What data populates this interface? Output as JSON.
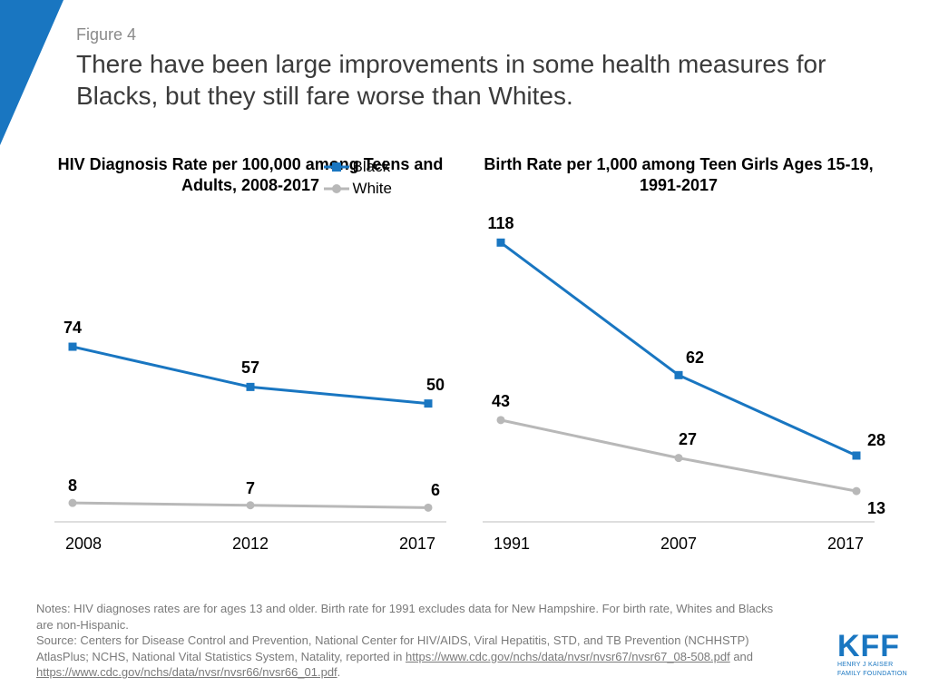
{
  "header": {
    "figure_label": "Figure 4",
    "title": "There have been large improvements in some health measures for Blacks, but they still fare worse than Whites."
  },
  "accent_color": "#1976c1",
  "legend": {
    "black_label": "Black",
    "white_label": "White",
    "black_color": "#1976c1",
    "white_color": "#b8b8b8"
  },
  "chart_left": {
    "type": "line",
    "title": "HIV Diagnosis Rate per 100,000 among Teens and Adults, 2008-2017",
    "x_labels": [
      "2008",
      "2012",
      "2017"
    ],
    "ylim": [
      0,
      130
    ],
    "series": {
      "black": {
        "color": "#1976c1",
        "marker": "square",
        "values": [
          74,
          57,
          50
        ]
      },
      "white": {
        "color": "#b8b8b8",
        "marker": "circle",
        "values": [
          8,
          7,
          6
        ]
      }
    },
    "line_width": 3,
    "marker_size": 9,
    "label_fontsize": 18,
    "label_fontweight": "bold",
    "background_color": "#ffffff"
  },
  "chart_right": {
    "type": "line",
    "title": "Birth Rate per 1,000 among Teen Girls Ages 15-19, 1991-2017",
    "x_labels": [
      "1991",
      "2007",
      "2017"
    ],
    "ylim": [
      0,
      130
    ],
    "series": {
      "black": {
        "color": "#1976c1",
        "marker": "square",
        "values": [
          118,
          62,
          28
        ]
      },
      "white": {
        "color": "#b8b8b8",
        "marker": "circle",
        "values": [
          43,
          27,
          13
        ]
      }
    },
    "line_width": 3,
    "marker_size": 9,
    "label_fontsize": 18,
    "label_fontweight": "bold",
    "background_color": "#ffffff"
  },
  "footer": {
    "notes": "Notes: HIV diagnoses rates are for ages 13 and older. Birth rate for 1991 excludes data for New Hampshire. For birth rate, Whites and Blacks are non-Hispanic.",
    "source_prefix": "Source: Centers for Disease Control and Prevention, National Center for HIV/AIDS, Viral Hepatitis, STD, and TB Prevention (NCHHSTP) AtlasPlus; NCHS, National Vital Statistics System, Natality, reported in ",
    "link1": "https://www.cdc.gov/nchs/data/nvsr/nvsr67/nvsr67_08-508.pdf",
    "and": " and ",
    "link2": "https://www.cdc.gov/nchs/data/nvsr/nvsr66/nvsr66_01.pdf",
    "period": "."
  },
  "logo": {
    "acronym": "KFF",
    "line1": "HENRY J KAISER",
    "line2": "FAMILY FOUNDATION"
  }
}
